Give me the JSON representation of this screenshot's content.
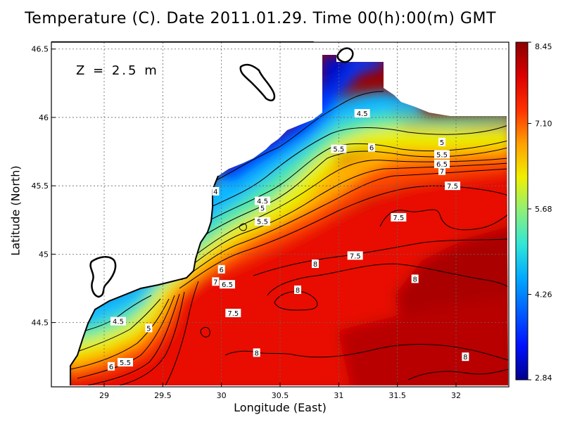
{
  "title": "Temperature (C). Date 2011.01.29. Time 00(h):00(m) GMT",
  "depth_label": "Z = 2.5 m",
  "chart_data": {
    "type": "heatmap",
    "title": "Temperature (C). Date 2011.01.29. Time 00(h):00(m) GMT",
    "xlabel": "Longitude (East)",
    "ylabel": "Latitude (North)",
    "xlim": [
      28.55,
      32.45
    ],
    "ylim": [
      44.03,
      46.55
    ],
    "x_ticks": [
      "29",
      "29.5",
      "30",
      "30.5",
      "31",
      "31.5",
      "32"
    ],
    "y_ticks": [
      "44.5",
      "45",
      "45.5",
      "46",
      "46.5"
    ],
    "grid": true,
    "colorbar": {
      "min": 2.84,
      "max": 8.45,
      "tick_labels": [
        "8.45",
        "7.10",
        "5.68",
        "4.26",
        "2.84"
      ],
      "colors": [
        "#00008c",
        "#0010ff",
        "#00a8ff",
        "#30e6d8",
        "#8cf07a",
        "#f0f000",
        "#ffa000",
        "#ff3000",
        "#dc0000",
        "#8c0000"
      ]
    },
    "contour_labels": [
      {
        "text": "4.5",
        "lon": 31.2,
        "lat": 46.03
      },
      {
        "text": "5",
        "lon": 31.88,
        "lat": 45.82
      },
      {
        "text": "5.5",
        "lon": 31.88,
        "lat": 45.73
      },
      {
        "text": "6",
        "lon": 31.28,
        "lat": 45.78
      },
      {
        "text": "5.5",
        "lon": 31.0,
        "lat": 45.77
      },
      {
        "text": "6.5",
        "lon": 31.88,
        "lat": 45.66
      },
      {
        "text": "7",
        "lon": 31.88,
        "lat": 45.61
      },
      {
        "text": "7.5",
        "lon": 31.97,
        "lat": 45.5
      },
      {
        "text": "4",
        "lon": 29.95,
        "lat": 45.46
      },
      {
        "text": "4.5",
        "lon": 30.35,
        "lat": 45.39
      },
      {
        "text": "5",
        "lon": 30.35,
        "lat": 45.34
      },
      {
        "text": "5.5",
        "lon": 30.35,
        "lat": 45.24
      },
      {
        "text": "7.5",
        "lon": 31.51,
        "lat": 45.27
      },
      {
        "text": "7.5",
        "lon": 31.14,
        "lat": 44.99
      },
      {
        "text": "6",
        "lon": 30.0,
        "lat": 44.89
      },
      {
        "text": "8",
        "lon": 30.8,
        "lat": 44.93
      },
      {
        "text": "7",
        "lon": 29.95,
        "lat": 44.8
      },
      {
        "text": "6.5",
        "lon": 30.05,
        "lat": 44.78
      },
      {
        "text": "8",
        "lon": 31.65,
        "lat": 44.82
      },
      {
        "text": "8",
        "lon": 30.65,
        "lat": 44.74
      },
      {
        "text": "7.5",
        "lon": 30.1,
        "lat": 44.57
      },
      {
        "text": "4.5",
        "lon": 29.12,
        "lat": 44.51
      },
      {
        "text": "5",
        "lon": 29.38,
        "lat": 44.46
      },
      {
        "text": "8",
        "lon": 30.3,
        "lat": 44.28
      },
      {
        "text": "5.5",
        "lon": 29.18,
        "lat": 44.21
      },
      {
        "text": "6",
        "lon": 29.06,
        "lat": 44.18
      },
      {
        "text": "8",
        "lon": 32.08,
        "lat": 44.25
      }
    ]
  }
}
